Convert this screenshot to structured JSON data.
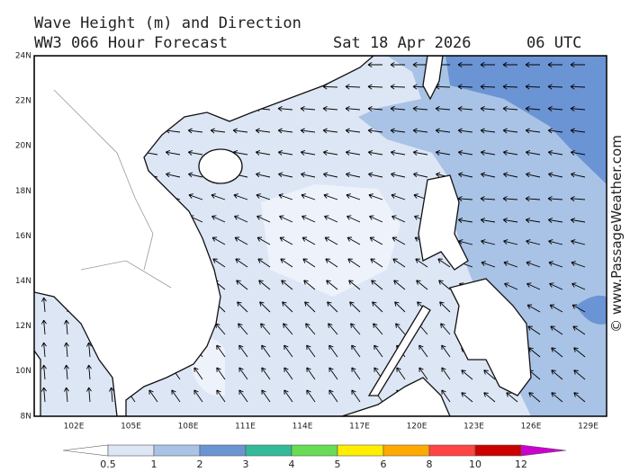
{
  "header": {
    "title": "Wave Height (m) and Direction",
    "subtitle": "WW3 066 Hour Forecast",
    "date": "Sat 18 Apr 2026",
    "time": "06 UTC"
  },
  "map": {
    "lat_labels": [
      "24N",
      "22N",
      "20N",
      "18N",
      "16N",
      "14N",
      "12N",
      "10N",
      "8N"
    ],
    "lon_labels": [
      "102E",
      "105E",
      "108E",
      "111E",
      "114E",
      "117E",
      "120E",
      "123E",
      "126E",
      "129E"
    ]
  },
  "colorbar": {
    "labels": [
      "0.5",
      "1",
      "2",
      "3",
      "4",
      "5",
      "6",
      "8",
      "10",
      "12"
    ],
    "colors": [
      "#ffffff",
      "#dde6f5",
      "#a9c3e6",
      "#6b94d4",
      "#33bb99",
      "#66dd55",
      "#ffee00",
      "#ffaa00",
      "#ff4444",
      "#cc0000",
      "#cc00cc"
    ]
  },
  "credit": "© www.PassageWeather.com"
}
